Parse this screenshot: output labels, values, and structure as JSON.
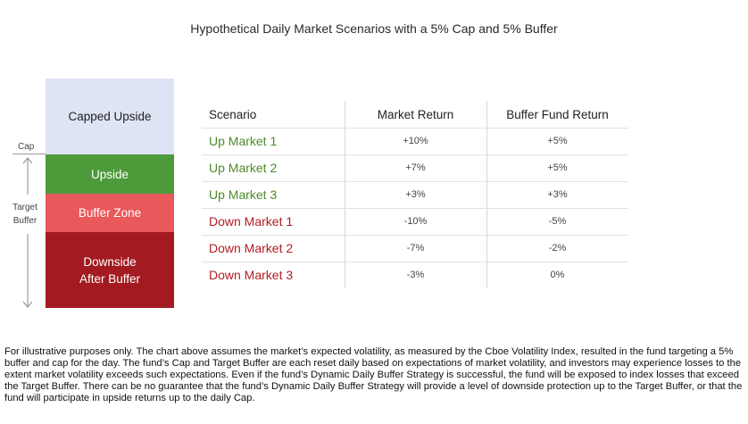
{
  "title": "Hypothetical Daily Market Scenarios with a 5% Cap and 5% Buffer",
  "colors": {
    "capped_upside": "#dde4f3",
    "upside": "#4d9a3b",
    "buffer_zone": "#e9585a",
    "downside_after_buffer": "#a31b21",
    "up_text": "#4d8a2a",
    "down_text": "#b01d23"
  },
  "side_labels": {
    "cap": "Cap",
    "target_buffer_line1": "Target",
    "target_buffer_line2": "Buffer"
  },
  "chart_data": [
    {
      "type": "bar",
      "segments": [
        {
          "label": "Capped Upside"
        },
        {
          "label": "Upside"
        },
        {
          "label": "Buffer Zone"
        },
        {
          "label": "Downside",
          "label_line2": "After Buffer"
        }
      ]
    },
    {
      "type": "table",
      "columns": [
        "Scenario",
        "Market Return",
        "Buffer Fund Return"
      ],
      "rows": [
        {
          "scenario": "Up Market 1",
          "market": "+10%",
          "fund": "+5%",
          "dir": "up"
        },
        {
          "scenario": "Up Market 2",
          "market": "+7%",
          "fund": "+5%",
          "dir": "up"
        },
        {
          "scenario": "Up Market 3",
          "market": "+3%",
          "fund": "+3%",
          "dir": "up"
        },
        {
          "scenario": "Down Market 1",
          "market": "-10%",
          "fund": "-5%",
          "dir": "down"
        },
        {
          "scenario": "Down Market 2",
          "market": "-7%",
          "fund": "-2%",
          "dir": "down"
        },
        {
          "scenario": "Down Market 3",
          "market": "-3%",
          "fund": "0%",
          "dir": "down"
        }
      ]
    }
  ],
  "footnote": "For illustrative purposes only. The chart above assumes the market’s expected volatility, as measured by the Cboe Volatility Index, resulted in the fund targeting a 5% buffer and cap for the day. The fund’s Cap and Target Buffer are each reset daily based on expectations of market volatility, and investors may experience losses to the extent market volatility exceeds such expectations. Even if the fund’s Dynamic Daily Buffer Strategy is successful, the fund will be exposed to index losses that exceed the Target Buffer. There can be no guarantee that the fund’s Dynamic Daily Buffer Strategy will provide a level of downside protection up to the Target Buffer, or that the fund will participate in upside returns up to the daily Cap."
}
